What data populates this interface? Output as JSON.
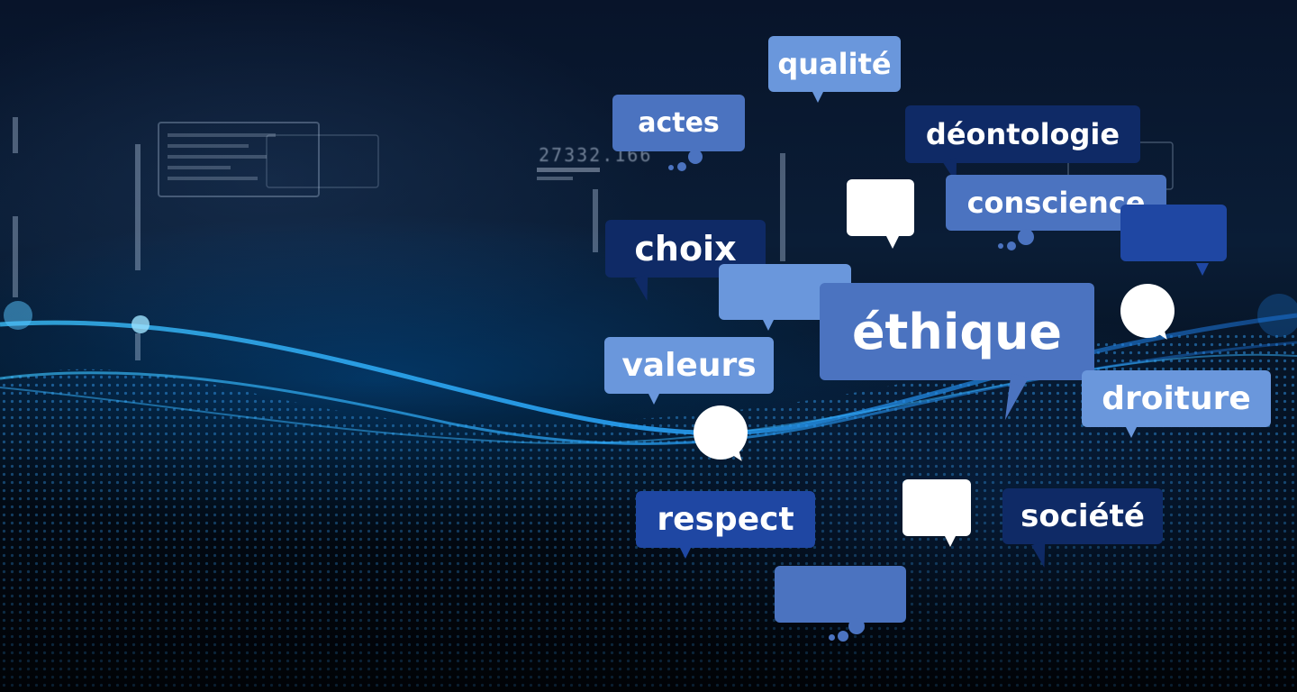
{
  "hud": {
    "number": "27332.166"
  },
  "words": {
    "qualite": "qualité",
    "actes": "actes",
    "deontologie": "déontologie",
    "conscience": "conscience",
    "choix": "choix",
    "ethique": "éthique",
    "valeurs": "valeurs",
    "droiture": "droiture",
    "respect": "respect",
    "societe": "société"
  },
  "colors": {
    "light_blue": "#6a97dc",
    "mid_blue": "#4b73c0",
    "dark_navy": "#0f2a66",
    "royal_blue": "#1f47a3",
    "white": "#ffffff",
    "glow_cyan": "#2fb8ff"
  }
}
